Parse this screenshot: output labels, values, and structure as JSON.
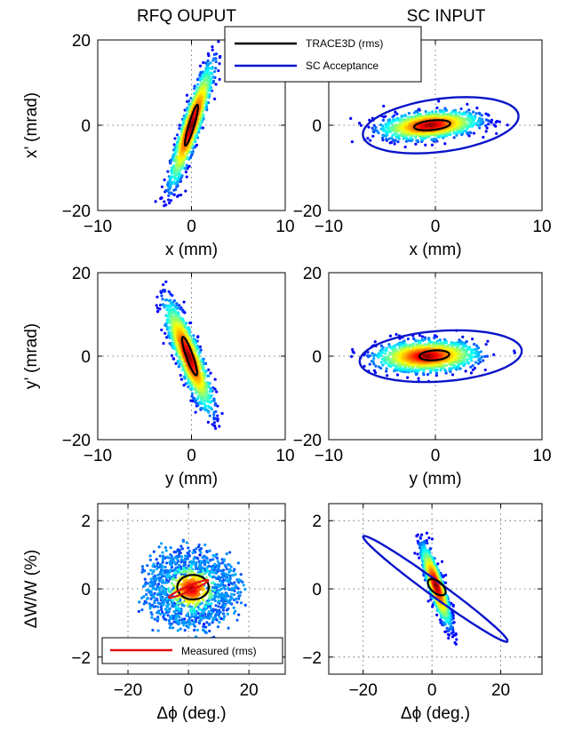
{
  "columns": [
    "RFQ OUPUT",
    "SC INPUT"
  ],
  "legend_top": {
    "items": [
      "TRACE3D (rms)",
      "SC Acceptance"
    ],
    "colors": [
      "#000000",
      "#0a14c8"
    ]
  },
  "legend_bottom": {
    "items": [
      "Measured (rms)"
    ],
    "colors": [
      "#e01010"
    ]
  },
  "chart_data": [
    {
      "type": "scatter",
      "panel": "RFQ OUPUT x-x'",
      "xlabel": "x (mm)",
      "ylabel": "x’ (mrad)",
      "xlim": [
        -10,
        10
      ],
      "ylim": [
        -20,
        20
      ],
      "xticks": [
        "−10",
        "0",
        "10"
      ],
      "yticks": [
        "20",
        "0",
        "−20"
      ],
      "xtickvals": [
        -10,
        0,
        10
      ],
      "ytickvals": [
        20,
        0,
        -20
      ],
      "grid": "dotted",
      "distribution": {
        "cx": 0,
        "cy": 0,
        "sx": 1.1,
        "sy": 6.8,
        "rho": 0.9,
        "shape": "gaussian"
      },
      "ellipses": [
        {
          "series": "TRACE3D (rms)",
          "cx": 0,
          "cy": 0,
          "sx": 0.7,
          "sy": 4.8,
          "rho": 0.9
        }
      ]
    },
    {
      "type": "scatter",
      "panel": "SC INPUT x-x'",
      "xlabel": "x (mm)",
      "ylabel": "",
      "xlim": [
        -10,
        10
      ],
      "ylim": [
        -20,
        20
      ],
      "xticks": [
        "−10",
        "0",
        "10"
      ],
      "yticks": [
        "20",
        "0",
        "−20"
      ],
      "xtickvals": [
        -10,
        0,
        10
      ],
      "ytickvals": [
        20,
        0,
        -20
      ],
      "grid": "dotted",
      "distribution": {
        "cx": -0.5,
        "cy": 0,
        "sx": 2.2,
        "sy": 1.6,
        "rho": 0.3,
        "shape": "gaussian"
      },
      "ellipses": [
        {
          "series": "SC Acceptance",
          "cx": 0.5,
          "cy": 0,
          "sx": 7.3,
          "sy": 6.6,
          "rho": 0.32
        },
        {
          "series": "TRACE3D (rms)",
          "cx": -0.3,
          "cy": 0,
          "sx": 1.7,
          "sy": 1.2,
          "rho": 0.35
        }
      ]
    },
    {
      "type": "scatter",
      "panel": "RFQ OUPUT y-y'",
      "xlabel": "y (mm)",
      "ylabel": "y’ (mrad)",
      "xlim": [
        -10,
        10
      ],
      "ylim": [
        -20,
        20
      ],
      "xticks": [
        "−10",
        "0",
        "10"
      ],
      "yticks": [
        "20",
        "0",
        "−20"
      ],
      "xtickvals": [
        -10,
        0,
        10
      ],
      "ytickvals": [
        20,
        0,
        -20
      ],
      "grid": "dotted",
      "distribution": {
        "cx": -0.3,
        "cy": 0,
        "sx": 1.2,
        "sy": 6.2,
        "rho": -0.85,
        "shape": "gaussian"
      },
      "ellipses": [
        {
          "series": "TRACE3D (rms)",
          "cx": -0.2,
          "cy": 0,
          "sx": 0.8,
          "sy": 4.6,
          "rho": -0.88
        }
      ]
    },
    {
      "type": "scatter",
      "panel": "SC INPUT y-y'",
      "xlabel": "y (mm)",
      "ylabel": "",
      "xlim": [
        -10,
        10
      ],
      "ylim": [
        -20,
        20
      ],
      "xticks": [
        "−10",
        "0",
        "10"
      ],
      "yticks": [
        "20",
        "0",
        "−20"
      ],
      "xtickvals": [
        -10,
        0,
        10
      ],
      "ytickvals": [
        20,
        0,
        -20
      ],
      "grid": "dotted",
      "distribution": {
        "cx": -0.8,
        "cy": 0,
        "sx": 2.3,
        "sy": 1.8,
        "rho": 0.1,
        "shape": "gaussian"
      },
      "ellipses": [
        {
          "series": "SC Acceptance",
          "cx": 0.5,
          "cy": 0,
          "sx": 7.6,
          "sy": 6.2,
          "rho": 0.2
        },
        {
          "series": "TRACE3D (rms)",
          "cx": -0.1,
          "cy": 0.2,
          "sx": 1.4,
          "sy": 1.2,
          "rho": 0.2
        }
      ]
    },
    {
      "type": "scatter",
      "panel": "RFQ OUPUT phase-energy",
      "xlabel": "Δϕ (deg.)",
      "ylabel": "ΔW/W (%)",
      "xlim": [
        -30,
        32
      ],
      "ylim": [
        -2.5,
        2.5
      ],
      "xticks": [
        "−20",
        "0",
        "20"
      ],
      "yticks": [
        "2",
        "0",
        "−2"
      ],
      "xtickvals": [
        -20,
        0,
        20
      ],
      "ytickvals": [
        2,
        0,
        -2
      ],
      "grid": "dotted",
      "distribution": {
        "cx": 1,
        "cy": 0,
        "r": 12,
        "ry": 0.9,
        "shape": "ring"
      },
      "ellipses": [
        {
          "series": "TRACE3D (rms)",
          "cx": 1.5,
          "cy": 0.05,
          "sx": 5.2,
          "sy": 0.36,
          "rho": 0.0
        },
        {
          "series": "Measured (rms)",
          "cx": 0,
          "cy": 0,
          "sx": 6.5,
          "sy": 0.26,
          "rho": 0.95
        }
      ]
    },
    {
      "type": "scatter",
      "panel": "SC INPUT phase-energy",
      "xlabel": "Δϕ (deg.)",
      "ylabel": "",
      "xlim": [
        -30,
        32
      ],
      "ylim": [
        -2.5,
        2.5
      ],
      "xticks": [
        "−20",
        "0",
        "20"
      ],
      "yticks": [
        "2",
        "0",
        "−2"
      ],
      "xtickvals": [
        -20,
        0,
        20
      ],
      "ytickvals": [
        2,
        0,
        -2
      ],
      "grid": "dotted",
      "distribution": {
        "cx": 1.2,
        "cy": 0.1,
        "sx": 2.0,
        "sy": 0.55,
        "rho": -0.85,
        "shape": "gaussian"
      },
      "ellipses": [
        {
          "series": "SC Acceptance",
          "cx": 1.0,
          "cy": 0,
          "sx": 21,
          "sy": 1.55,
          "rho": -0.985
        },
        {
          "series": "TRACE3D (rms)",
          "cx": 1.4,
          "cy": 0.05,
          "sx": 2.6,
          "sy": 0.24,
          "rho": -0.55
        }
      ]
    }
  ]
}
